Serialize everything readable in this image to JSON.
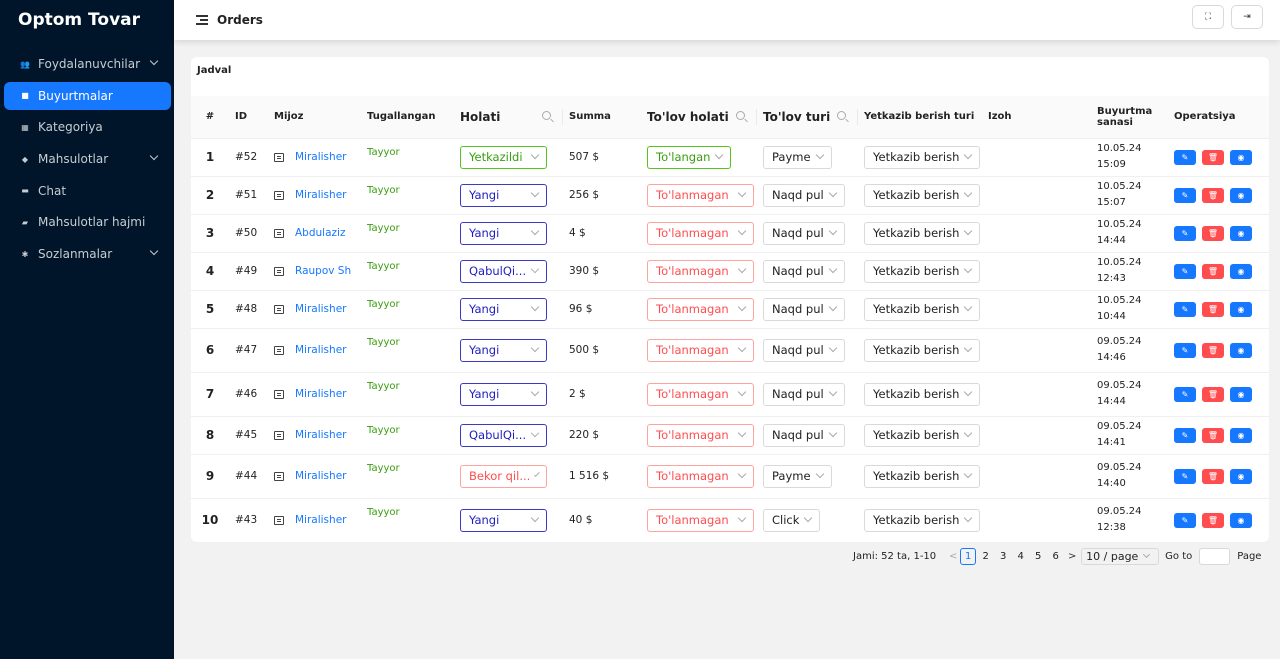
{
  "app_title": "Optom Tovar",
  "sidebar": {
    "items": [
      {
        "label": "Foydalanuvchilar",
        "icon": "users-icon",
        "expandable": true,
        "active": false
      },
      {
        "label": "Buyurtmalar",
        "icon": "shopping-bag-icon",
        "expandable": false,
        "active": true
      },
      {
        "label": "Kategoriya",
        "icon": "grid-icon",
        "expandable": false,
        "active": false
      },
      {
        "label": "Mahsulotlar",
        "icon": "product-icon",
        "expandable": true,
        "active": false
      },
      {
        "label": "Chat",
        "icon": "chat-icon",
        "expandable": false,
        "active": false
      },
      {
        "label": "Mahsulotlar hajmi",
        "icon": "box-icon",
        "expandable": false,
        "active": false
      },
      {
        "label": "Sozlanmalar",
        "icon": "gear-icon",
        "expandable": true,
        "active": false
      }
    ]
  },
  "header": {
    "title": "Orders",
    "fullscreen_icon": "fullscreen-icon",
    "logout_icon": "logout-icon"
  },
  "card": {
    "title": "Jadval"
  },
  "table": {
    "headers": {
      "num": "#",
      "id": "ID",
      "client": "Mijoz",
      "finished": "Tugallangan",
      "status": "Holati",
      "sum": "Summa",
      "pay_status": "To'lov holati",
      "pay_type": "To'lov turi",
      "delivery": "Yetkazib berish turi",
      "note": "Izoh",
      "date_1": "Buyurtma",
      "date_2": "sanasi",
      "ops": "Operatsiya"
    },
    "rows": [
      {
        "num": "1",
        "id": "#52",
        "client": "Miralisher",
        "finished": "Tayyor",
        "status": "Yetkazildi",
        "status_style": "green",
        "sum": "507 $",
        "pay_status": "To'langan",
        "pay_style": "green",
        "pay_type": "Payme",
        "delivery": "Yetkazib berish",
        "date": "10.05.24 15:09"
      },
      {
        "num": "2",
        "id": "#51",
        "client": "Miralisher",
        "finished": "Tayyor",
        "status": "Yangi",
        "status_style": "navy",
        "sum": "256 $",
        "pay_status": "To'lanmagan",
        "pay_style": "red",
        "pay_type": "Naqd pul",
        "delivery": "Yetkazib berish",
        "date": "10.05.24 15:07"
      },
      {
        "num": "3",
        "id": "#50",
        "client": "Abdulaziz",
        "finished": "Tayyor",
        "status": "Yangi",
        "status_style": "navy",
        "sum": "4 $",
        "pay_status": "To'lanmagan",
        "pay_style": "red",
        "pay_type": "Naqd pul",
        "delivery": "Yetkazib berish",
        "date": "10.05.24 14:44"
      },
      {
        "num": "4",
        "id": "#49",
        "client": "Raupov Sh",
        "finished": "Tayyor",
        "status": "QabulQi...",
        "status_style": "navy",
        "sum": "390 $",
        "pay_status": "To'lanmagan",
        "pay_style": "red",
        "pay_type": "Naqd pul",
        "delivery": "Yetkazib berish",
        "date": "10.05.24 12:43"
      },
      {
        "num": "5",
        "id": "#48",
        "client": "Miralisher",
        "finished": "Tayyor",
        "status": "Yangi",
        "status_style": "navy",
        "sum": "96 $",
        "pay_status": "To'lanmagan",
        "pay_style": "red",
        "pay_type": "Naqd pul",
        "delivery": "Yetkazib berish",
        "date": "10.05.24 10:44"
      },
      {
        "num": "6",
        "id": "#47",
        "client": "Miralisher",
        "finished": "Tayyor",
        "status": "Yangi",
        "status_style": "navy",
        "sum": "500 $",
        "pay_status": "To'lanmagan",
        "pay_style": "red",
        "pay_type": "Naqd pul",
        "delivery": "Yetkazib berish",
        "date": "09.05.24 14:46"
      },
      {
        "num": "7",
        "id": "#46",
        "client": "Miralisher",
        "finished": "Tayyor",
        "status": "Yangi",
        "status_style": "navy",
        "sum": "2 $",
        "pay_status": "To'lanmagan",
        "pay_style": "red",
        "pay_type": "Naqd pul",
        "delivery": "Yetkazib berish",
        "date": "09.05.24 14:44"
      },
      {
        "num": "8",
        "id": "#45",
        "client": "Miralisher",
        "finished": "Tayyor",
        "status": "QabulQi...",
        "status_style": "navy",
        "sum": "220 $",
        "pay_status": "To'lanmagan",
        "pay_style": "red",
        "pay_type": "Naqd pul",
        "delivery": "Yetkazib berish",
        "date": "09.05.24 14:41"
      },
      {
        "num": "9",
        "id": "#44",
        "client": "Miralisher",
        "finished": "Tayyor",
        "status": "Bekor qil...",
        "status_style": "red",
        "sum": "1 516 $",
        "pay_status": "To'lanmagan",
        "pay_style": "red",
        "pay_type": "Payme",
        "delivery": "Yetkazib berish",
        "date": "09.05.24 14:40"
      },
      {
        "num": "10",
        "id": "#43",
        "client": "Miralisher",
        "finished": "Tayyor",
        "status": "Yangi",
        "status_style": "navy",
        "sum": "40 $",
        "pay_status": "To'lanmagan",
        "pay_style": "red",
        "pay_type": "Click",
        "delivery": "Yetkazib berish",
        "date": "09.05.24 12:38"
      }
    ]
  },
  "pagination": {
    "total": "Jami: 52 ta, 1-10",
    "pages": [
      "1",
      "2",
      "3",
      "4",
      "5",
      "6"
    ],
    "current": "1",
    "prev": "<",
    "next": ">",
    "page_size": "10 / page",
    "goto_label": "Go to",
    "page_label": "Page"
  },
  "colors": {
    "sidebar_bg": "#001529",
    "accent": "#1677ff",
    "danger": "#ff4d4f",
    "success": "#389e0d"
  }
}
